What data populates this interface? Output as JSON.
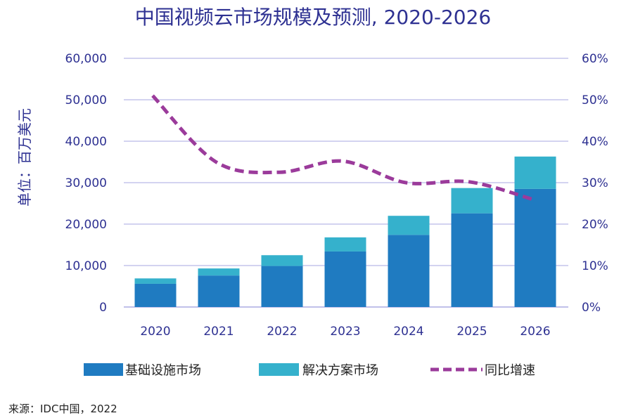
{
  "chart_data": {
    "type": "bar",
    "title": "中国视频云市场规模及预测, 2020-2026",
    "ylabel": "单位：百万美元",
    "xlabel": "",
    "categories": [
      "2020",
      "2021",
      "2022",
      "2023",
      "2024",
      "2025",
      "2026"
    ],
    "stacked": true,
    "series": [
      {
        "name": "基础设施市场",
        "type": "bar",
        "axis": "left",
        "color": "#1f7bc1",
        "values": [
          5600,
          7600,
          9900,
          13400,
          17400,
          22600,
          28500
        ]
      },
      {
        "name": "解决方案市场",
        "type": "bar",
        "axis": "left",
        "color": "#35b1cc",
        "values": [
          1300,
          1700,
          2600,
          3400,
          4600,
          6100,
          7800
        ]
      },
      {
        "name": "同比增速",
        "type": "line",
        "axis": "right",
        "color": "#9b3b9b",
        "dashed": true,
        "values": [
          0.51,
          0.35,
          0.325,
          0.352,
          0.3,
          0.302,
          0.26
        ]
      }
    ],
    "ylim": [
      0,
      60000
    ],
    "y2lim": [
      0,
      0.6
    ],
    "yticks": [
      "0",
      "10,000",
      "20,000",
      "30,000",
      "40,000",
      "50,000",
      "60,000"
    ],
    "y2ticks": [
      "0%",
      "10%",
      "20%",
      "30%",
      "40%",
      "50%",
      "60%"
    ],
    "grid": true,
    "legend_position": "bottom"
  },
  "source": "来源：IDC中国，2022",
  "colors": {
    "axis_text": "#2e3192",
    "grid": "#b9b9e8"
  }
}
